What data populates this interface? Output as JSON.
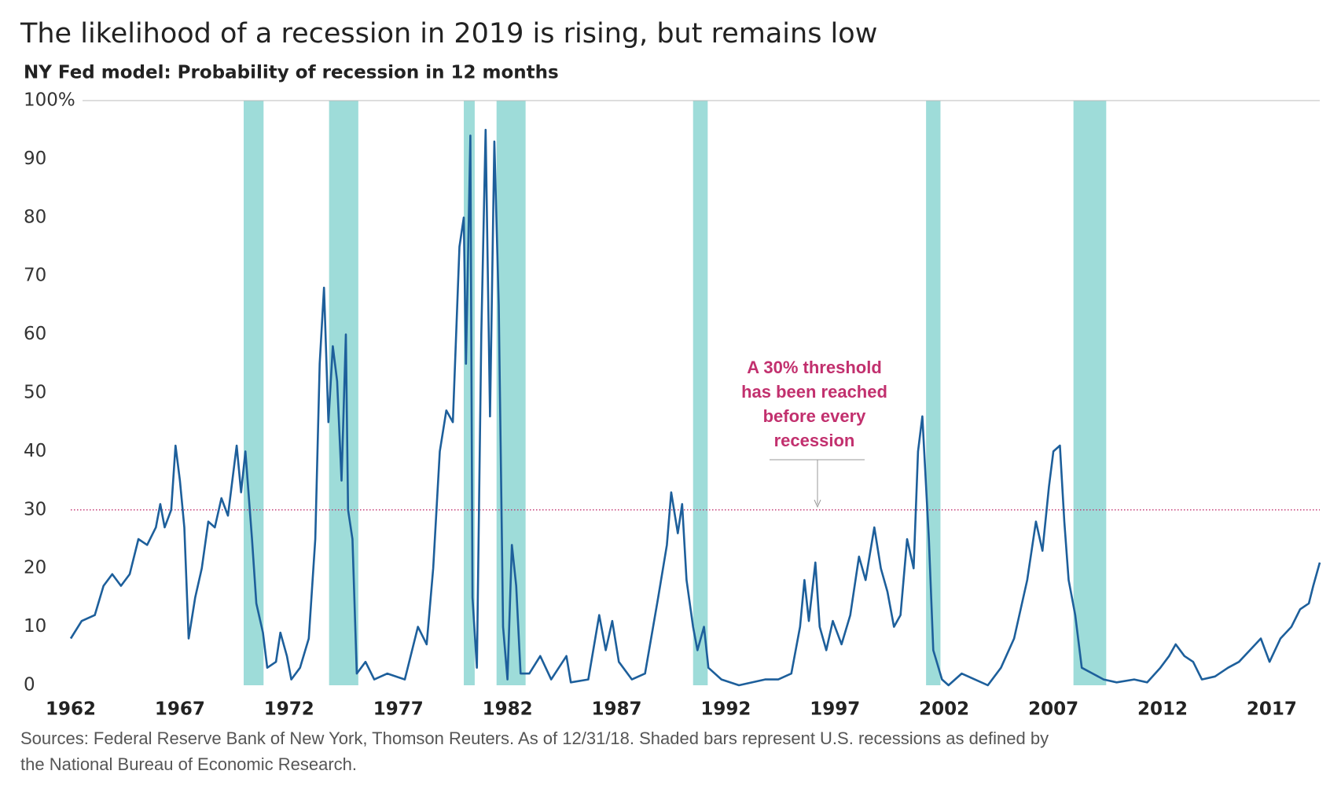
{
  "chart_data": {
    "type": "line",
    "title": "The likelihood of a recession in 2019 is rising, but remains low",
    "subtitle": "NY Fed model: Probability of recession in 12 months",
    "annotation": [
      "A 30% threshold",
      "has been reached",
      "before every",
      "recession"
    ],
    "footnote": [
      "Sources: Federal Reserve Bank of New York, Thomson Reuters. As of 12/31/18. Shaded bars represent U.S. recessions as defined by",
      "the National Bureau of Economic Research."
    ],
    "threshold": 30,
    "threshold_color": "#c2306e",
    "recession_color": "#9edcd9",
    "recessions": [
      {
        "start": 1969.92,
        "end": 1970.83
      },
      {
        "start": 1973.83,
        "end": 1975.17
      },
      {
        "start": 1980.0,
        "end": 1980.5
      },
      {
        "start": 1981.5,
        "end": 1982.83
      },
      {
        "start": 1990.5,
        "end": 1991.17
      },
      {
        "start": 2001.17,
        "end": 2001.83
      },
      {
        "start": 2007.92,
        "end": 2009.42
      }
    ],
    "xlim": [
      1962,
      2019.2
    ],
    "xticks": [
      1962,
      1967,
      1972,
      1977,
      1982,
      1987,
      1992,
      1997,
      2002,
      2007,
      2012,
      2017
    ],
    "ylim": [
      0,
      100
    ],
    "yticks": [
      0,
      10,
      20,
      30,
      40,
      50,
      60,
      70,
      80,
      90,
      {
        "value": 100,
        "label": "100%"
      }
    ],
    "x": [
      1962.0,
      1962.5,
      1963.1,
      1963.5,
      1963.9,
      1964.3,
      1964.7,
      1965.1,
      1965.5,
      1965.9,
      1966.1,
      1966.3,
      1966.6,
      1966.8,
      1967.0,
      1967.2,
      1967.4,
      1967.7,
      1968.0,
      1968.3,
      1968.6,
      1968.9,
      1969.2,
      1969.6,
      1969.8,
      1970.0,
      1970.3,
      1970.5,
      1970.8,
      1971.0,
      1971.4,
      1971.6,
      1971.9,
      1972.1,
      1972.5,
      1972.9,
      1973.2,
      1973.4,
      1973.6,
      1973.8,
      1974.0,
      1974.2,
      1974.4,
      1974.6,
      1974.7,
      1974.9,
      1975.1,
      1975.5,
      1975.9,
      1976.5,
      1977.3,
      1977.9,
      1978.3,
      1978.6,
      1978.9,
      1979.2,
      1979.5,
      1979.8,
      1980.0,
      1980.1,
      1980.3,
      1980.4,
      1980.6,
      1980.8,
      1981.0,
      1981.2,
      1981.4,
      1981.6,
      1981.8,
      1982.0,
      1982.2,
      1982.4,
      1982.6,
      1983.0,
      1983.5,
      1984.0,
      1984.7,
      1984.9,
      1985.7,
      1986.2,
      1986.5,
      1986.8,
      1987.1,
      1987.7,
      1988.3,
      1988.9,
      1989.3,
      1989.5,
      1989.8,
      1990.0,
      1990.2,
      1990.5,
      1990.7,
      1991.0,
      1991.2,
      1991.8,
      1992.6,
      1993.8,
      1994.4,
      1995.0,
      1995.4,
      1995.6,
      1995.8,
      1996.1,
      1996.3,
      1996.6,
      1996.9,
      1997.3,
      1997.7,
      1998.1,
      1998.4,
      1998.8,
      1999.1,
      1999.4,
      1999.7,
      2000.0,
      2000.3,
      2000.6,
      2000.8,
      2001.0,
      2001.3,
      2001.5,
      2001.9,
      2002.2,
      2002.8,
      2003.4,
      2004.0,
      2004.6,
      2005.2,
      2005.8,
      2006.2,
      2006.5,
      2006.8,
      2007.0,
      2007.3,
      2007.5,
      2007.7,
      2008.0,
      2008.3,
      2008.8,
      2009.3,
      2009.9,
      2010.7,
      2011.3,
      2011.9,
      2012.3,
      2012.6,
      2013.0,
      2013.4,
      2013.8,
      2014.4,
      2015.0,
      2015.5,
      2016.0,
      2016.5,
      2016.9,
      2017.4,
      2017.9,
      2018.3,
      2018.7,
      2018.9,
      2019.2
    ],
    "series": [
      {
        "color": "#1d5f9b",
        "values": [
          8,
          11,
          12,
          17,
          19,
          17,
          19,
          25,
          24,
          27,
          31,
          27,
          30,
          41,
          35,
          27,
          8,
          15,
          20,
          28,
          27,
          32,
          29,
          41,
          33,
          40,
          25,
          14,
          9,
          3,
          4,
          9,
          5,
          1,
          3,
          8,
          25,
          55,
          68,
          45,
          58,
          52,
          35,
          60,
          30,
          25,
          2,
          4,
          1,
          2,
          1,
          10,
          7,
          20,
          40,
          47,
          45,
          75,
          80,
          55,
          94,
          15,
          3,
          60,
          95,
          46,
          93,
          65,
          10,
          1,
          24,
          17,
          2,
          2,
          5,
          1,
          5,
          0.5,
          1,
          12,
          6,
          11,
          4,
          1,
          2,
          15,
          24,
          33,
          26,
          31,
          18,
          10,
          6,
          10,
          3,
          1,
          0,
          1,
          1,
          2,
          10,
          18,
          11,
          21,
          10,
          6,
          11,
          7,
          12,
          22,
          18,
          27,
          20,
          16,
          10,
          12,
          25,
          20,
          40,
          46,
          25,
          6,
          1,
          0,
          2,
          1,
          0,
          3,
          8,
          18,
          28,
          23,
          34,
          40,
          41,
          28,
          18,
          12,
          3,
          2,
          1,
          0.5,
          1,
          0.5,
          3,
          5,
          7,
          5,
          4,
          1,
          1.5,
          3,
          4,
          6,
          8,
          4,
          8,
          10,
          13,
          14,
          17,
          21
        ]
      }
    ]
  }
}
